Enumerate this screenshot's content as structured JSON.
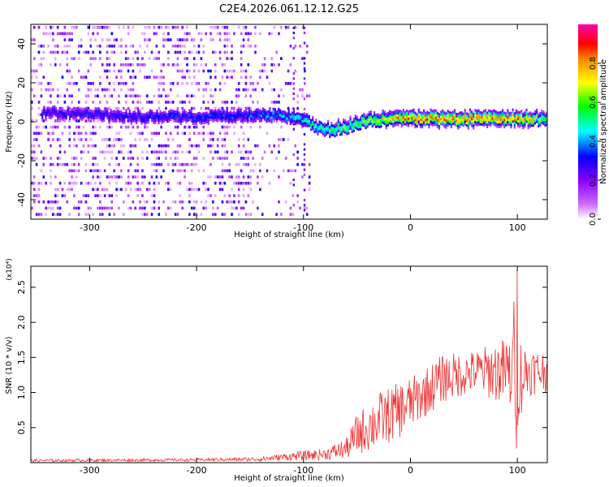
{
  "title": "C2E4.2026.061.12.12.G25",
  "chart_data": [
    {
      "type": "heatmap",
      "xlabel": "Height of straight line (km)",
      "ylabel": "Frequency (Hz)",
      "xlim": [
        -355,
        128
      ],
      "ylim": [
        -50,
        50
      ],
      "x_ticks": [
        -300,
        -200,
        -100,
        0,
        100
      ],
      "y_ticks": [
        -40,
        -20,
        0,
        20,
        40
      ],
      "colorbar": {
        "label": "Normalized spectral amplitude",
        "range": [
          0,
          1
        ],
        "ticks": [
          "0.0",
          "0.2",
          "0.4",
          "0.6",
          "0.8"
        ],
        "colors": [
          "#ffffff",
          "#8800ff",
          "#0000ff",
          "#00ffff",
          "#00ff00",
          "#ffff00",
          "#ff0000",
          "#ff00aa"
        ]
      },
      "ridge": [
        {
          "x": -340,
          "freq": 4,
          "amp": 0.3
        },
        {
          "x": -300,
          "freq": 3,
          "amp": 0.32
        },
        {
          "x": -250,
          "freq": 2,
          "amp": 0.33
        },
        {
          "x": -200,
          "freq": 2,
          "amp": 0.35
        },
        {
          "x": -150,
          "freq": 3,
          "amp": 0.38
        },
        {
          "x": -120,
          "freq": 3,
          "amp": 0.45
        },
        {
          "x": -100,
          "freq": 0,
          "amp": 0.5
        },
        {
          "x": -80,
          "freq": -5,
          "amp": 0.55
        },
        {
          "x": -60,
          "freq": -3,
          "amp": 0.6
        },
        {
          "x": -40,
          "freq": 0,
          "amp": 0.65
        },
        {
          "x": -20,
          "freq": 1,
          "amp": 0.75
        },
        {
          "x": 0,
          "freq": 1,
          "amp": 0.85
        },
        {
          "x": 50,
          "freq": 1,
          "amp": 0.88
        },
        {
          "x": 100,
          "freq": 1,
          "amp": 0.85
        },
        {
          "x": 128,
          "freq": 1,
          "amp": 0.6
        }
      ]
    },
    {
      "type": "line",
      "xlabel": "Height of straight line (km)",
      "ylabel": "SNR (10 * v/v)",
      "yscale_label": "(x10⁴)",
      "xlim": [
        -355,
        128
      ],
      "ylim": [
        0,
        2.8
      ],
      "x_ticks": [
        -300,
        -200,
        -100,
        0,
        100
      ],
      "y_ticks": [
        0.5,
        1.0,
        1.5,
        2.0,
        2.5
      ],
      "series": [
        {
          "color": "#ee3333",
          "envelope": [
            {
              "x": -355,
              "mean": 0.03,
              "amp": 0.02
            },
            {
              "x": -200,
              "mean": 0.04,
              "amp": 0.02
            },
            {
              "x": -140,
              "mean": 0.05,
              "amp": 0.03
            },
            {
              "x": -120,
              "mean": 0.08,
              "amp": 0.05
            },
            {
              "x": -100,
              "mean": 0.1,
              "amp": 0.07
            },
            {
              "x": -80,
              "mean": 0.12,
              "amp": 0.08
            },
            {
              "x": -60,
              "mean": 0.2,
              "amp": 0.15
            },
            {
              "x": -50,
              "mean": 0.4,
              "amp": 0.3
            },
            {
              "x": -30,
              "mean": 0.6,
              "amp": 0.4
            },
            {
              "x": -10,
              "mean": 0.75,
              "amp": 0.4
            },
            {
              "x": 10,
              "mean": 0.95,
              "amp": 0.35
            },
            {
              "x": 30,
              "mean": 1.2,
              "amp": 0.35
            },
            {
              "x": 60,
              "mean": 1.3,
              "amp": 0.3
            },
            {
              "x": 90,
              "mean": 1.3,
              "amp": 0.5
            },
            {
              "x": 100,
              "mean": 1.2,
              "amp": 0.7
            },
            {
              "x": 110,
              "mean": 1.3,
              "amp": 0.35
            },
            {
              "x": 128,
              "mean": 1.3,
              "amp": 0.3
            }
          ],
          "peaks": [
            {
              "x": 100,
              "y": 2.75
            },
            {
              "x": 97,
              "y": 2.3
            },
            {
              "x": 99,
              "y": 0.2
            }
          ]
        }
      ]
    }
  ]
}
